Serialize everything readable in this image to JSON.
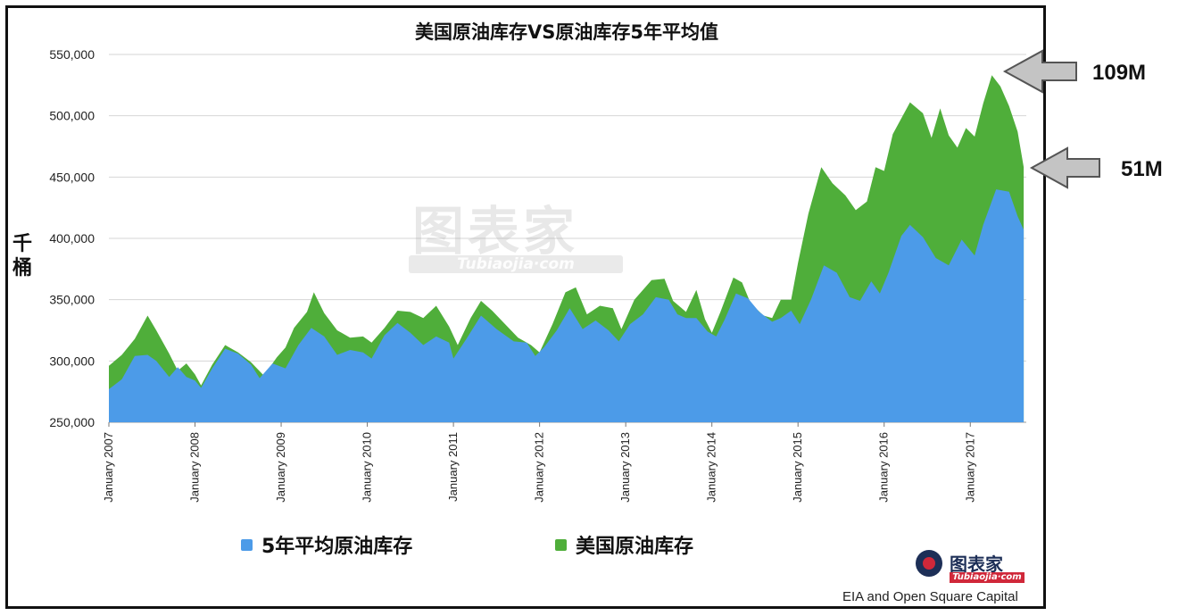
{
  "title": "美国原油库存VS原油库存5年平均值",
  "ylabel": "千桶",
  "legend": {
    "items": [
      {
        "label": "5年平均原油库存",
        "color": "#4c9be8"
      },
      {
        "label": "美国原油库存",
        "color": "#4fae3a"
      }
    ]
  },
  "annotations": [
    {
      "label": "109M"
    },
    {
      "label": "51M"
    }
  ],
  "source": "EIA and Open Square Capital",
  "watermark": {
    "main": "图表家",
    "sub": "Tubiaojia·com"
  },
  "logo": {
    "main": "图表家",
    "sub": "Tubiaojia·com"
  },
  "chart_data": {
    "type": "area",
    "ylim": [
      250000,
      550000
    ],
    "yticks": [
      250000,
      300000,
      350000,
      400000,
      450000,
      500000,
      550000
    ],
    "ytick_labels": [
      "250,000",
      "300,000",
      "350,000",
      "400,000",
      "450,000",
      "500,000",
      "550,000"
    ],
    "xticks": [
      "January 2007",
      "January 2008",
      "January 2009",
      "January 2010",
      "January 2011",
      "January 2012",
      "January 2013",
      "January 2014",
      "January 2015",
      "January 2016",
      "January 2017"
    ],
    "xlim": [
      2007.0,
      2017.65
    ],
    "grid": true,
    "legend_position": "bottom",
    "series": [
      {
        "name": "美国原油库存",
        "color": "#4fae3a",
        "points": [
          [
            2007.0,
            296000
          ],
          [
            2007.15,
            305000
          ],
          [
            2007.3,
            318000
          ],
          [
            2007.45,
            337000
          ],
          [
            2007.55,
            325000
          ],
          [
            2007.7,
            306000
          ],
          [
            2007.8,
            292000
          ],
          [
            2007.9,
            298000
          ],
          [
            2008.0,
            289000
          ],
          [
            2008.07,
            280000
          ],
          [
            2008.2,
            297000
          ],
          [
            2008.35,
            313000
          ],
          [
            2008.5,
            307000
          ],
          [
            2008.65,
            299000
          ],
          [
            2008.8,
            288000
          ],
          [
            2008.95,
            303000
          ],
          [
            2009.05,
            311000
          ],
          [
            2009.15,
            327000
          ],
          [
            2009.3,
            340000
          ],
          [
            2009.38,
            356000
          ],
          [
            2009.5,
            339000
          ],
          [
            2009.65,
            325000
          ],
          [
            2009.8,
            319000
          ],
          [
            2009.95,
            320000
          ],
          [
            2010.05,
            315000
          ],
          [
            2010.2,
            327000
          ],
          [
            2010.35,
            341000
          ],
          [
            2010.5,
            340000
          ],
          [
            2010.65,
            335000
          ],
          [
            2010.8,
            345000
          ],
          [
            2010.95,
            328000
          ],
          [
            2011.05,
            313000
          ],
          [
            2011.2,
            335000
          ],
          [
            2011.32,
            349000
          ],
          [
            2011.45,
            341000
          ],
          [
            2011.6,
            330000
          ],
          [
            2011.75,
            319000
          ],
          [
            2011.9,
            313000
          ],
          [
            2012.0,
            307000
          ],
          [
            2012.15,
            330000
          ],
          [
            2012.3,
            356000
          ],
          [
            2012.42,
            360000
          ],
          [
            2012.55,
            338000
          ],
          [
            2012.7,
            345000
          ],
          [
            2012.85,
            343000
          ],
          [
            2012.95,
            326000
          ],
          [
            2013.1,
            350000
          ],
          [
            2013.3,
            366000
          ],
          [
            2013.45,
            367000
          ],
          [
            2013.55,
            349000
          ],
          [
            2013.7,
            340000
          ],
          [
            2013.82,
            358000
          ],
          [
            2013.92,
            334000
          ],
          [
            2014.0,
            323000
          ],
          [
            2014.1,
            340000
          ],
          [
            2014.25,
            368000
          ],
          [
            2014.35,
            364000
          ],
          [
            2014.45,
            347000
          ],
          [
            2014.6,
            337000
          ],
          [
            2014.7,
            335000
          ],
          [
            2014.8,
            350000
          ],
          [
            2014.92,
            350000
          ],
          [
            2015.0,
            380000
          ],
          [
            2015.12,
            420000
          ],
          [
            2015.27,
            458000
          ],
          [
            2015.4,
            445000
          ],
          [
            2015.55,
            435000
          ],
          [
            2015.67,
            423000
          ],
          [
            2015.8,
            430000
          ],
          [
            2015.9,
            458000
          ],
          [
            2016.0,
            455000
          ],
          [
            2016.1,
            485000
          ],
          [
            2016.3,
            511000
          ],
          [
            2016.45,
            502000
          ],
          [
            2016.55,
            482000
          ],
          [
            2016.65,
            506000
          ],
          [
            2016.75,
            484000
          ],
          [
            2016.85,
            474000
          ],
          [
            2016.95,
            490000
          ],
          [
            2017.05,
            483000
          ],
          [
            2017.15,
            510000
          ],
          [
            2017.25,
            533000
          ],
          [
            2017.35,
            524000
          ],
          [
            2017.45,
            508000
          ],
          [
            2017.55,
            487000
          ],
          [
            2017.62,
            458000
          ]
        ]
      },
      {
        "name": "5年平均原油库存",
        "color": "#4c9be8",
        "points": [
          [
            2007.0,
            277000
          ],
          [
            2007.15,
            285000
          ],
          [
            2007.3,
            304000
          ],
          [
            2007.45,
            305000
          ],
          [
            2007.55,
            300000
          ],
          [
            2007.7,
            287000
          ],
          [
            2007.8,
            295000
          ],
          [
            2007.9,
            287000
          ],
          [
            2008.0,
            284000
          ],
          [
            2008.07,
            278000
          ],
          [
            2008.2,
            294000
          ],
          [
            2008.35,
            310000
          ],
          [
            2008.5,
            306000
          ],
          [
            2008.65,
            297000
          ],
          [
            2008.75,
            286000
          ],
          [
            2008.9,
            298000
          ],
          [
            2009.05,
            294000
          ],
          [
            2009.2,
            313000
          ],
          [
            2009.35,
            327000
          ],
          [
            2009.5,
            320000
          ],
          [
            2009.65,
            305000
          ],
          [
            2009.8,
            309000
          ],
          [
            2009.95,
            307000
          ],
          [
            2010.05,
            302000
          ],
          [
            2010.2,
            321000
          ],
          [
            2010.35,
            331000
          ],
          [
            2010.5,
            323000
          ],
          [
            2010.65,
            313000
          ],
          [
            2010.8,
            320000
          ],
          [
            2010.95,
            315000
          ],
          [
            2011.0,
            302000
          ],
          [
            2011.15,
            318000
          ],
          [
            2011.32,
            337000
          ],
          [
            2011.5,
            326000
          ],
          [
            2011.7,
            316000
          ],
          [
            2011.85,
            315000
          ],
          [
            2011.95,
            304000
          ],
          [
            2012.05,
            311000
          ],
          [
            2012.2,
            325000
          ],
          [
            2012.35,
            343000
          ],
          [
            2012.5,
            326000
          ],
          [
            2012.65,
            333000
          ],
          [
            2012.8,
            325000
          ],
          [
            2012.92,
            316000
          ],
          [
            2013.05,
            330000
          ],
          [
            2013.2,
            338000
          ],
          [
            2013.35,
            352000
          ],
          [
            2013.5,
            350000
          ],
          [
            2013.6,
            338000
          ],
          [
            2013.7,
            335000
          ],
          [
            2013.82,
            335000
          ],
          [
            2013.95,
            324000
          ],
          [
            2014.05,
            320000
          ],
          [
            2014.15,
            334000
          ],
          [
            2014.28,
            355000
          ],
          [
            2014.42,
            351000
          ],
          [
            2014.55,
            340000
          ],
          [
            2014.7,
            332000
          ],
          [
            2014.8,
            335000
          ],
          [
            2014.92,
            341000
          ],
          [
            2015.02,
            330000
          ],
          [
            2015.15,
            350000
          ],
          [
            2015.3,
            378000
          ],
          [
            2015.45,
            372000
          ],
          [
            2015.6,
            352000
          ],
          [
            2015.72,
            349000
          ],
          [
            2015.85,
            365000
          ],
          [
            2015.95,
            355000
          ],
          [
            2016.05,
            372000
          ],
          [
            2016.2,
            402000
          ],
          [
            2016.3,
            411000
          ],
          [
            2016.45,
            401000
          ],
          [
            2016.6,
            384000
          ],
          [
            2016.75,
            378000
          ],
          [
            2016.9,
            399000
          ],
          [
            2017.05,
            386000
          ],
          [
            2017.15,
            411000
          ],
          [
            2017.3,
            440000
          ],
          [
            2017.45,
            438000
          ],
          [
            2017.55,
            418000
          ],
          [
            2017.62,
            407000
          ]
        ]
      }
    ]
  }
}
